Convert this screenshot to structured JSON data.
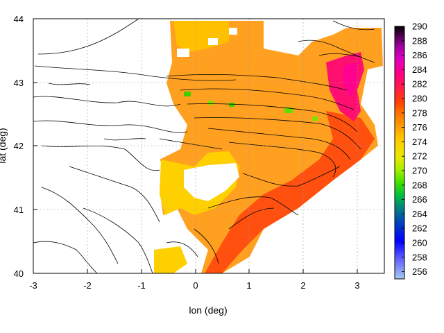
{
  "chart_data": {
    "type": "heatmap",
    "title": "",
    "xlabel": "lon (deg)",
    "ylabel": "lat (deg)",
    "xlim": [
      -3,
      3.5
    ],
    "ylim": [
      40,
      44
    ],
    "x_ticks": [
      "-3",
      "-2",
      "-1",
      "0",
      "1",
      "2",
      "3"
    ],
    "y_ticks": [
      "40",
      "41",
      "42",
      "43",
      "44"
    ],
    "grid": true,
    "colorbar": {
      "min": 255,
      "max": 290,
      "ticks": [
        "256",
        "258",
        "260",
        "262",
        "264",
        "266",
        "268",
        "270",
        "272",
        "274",
        "276",
        "278",
        "280",
        "282",
        "284",
        "286",
        "288",
        "290"
      ],
      "colors": [
        "#a8c8f0",
        "#6060ff",
        "#0000ff",
        "#0040c0",
        "#008080",
        "#00c040",
        "#40e000",
        "#a0f000",
        "#e8e800",
        "#ffcc00",
        "#ffa000",
        "#ff7000",
        "#ff4000",
        "#ff2040",
        "#ff0080",
        "#e000c0",
        "#a000a0",
        "#400040",
        "#000000"
      ]
    },
    "contours": "terrain elevation contours (black)"
  }
}
